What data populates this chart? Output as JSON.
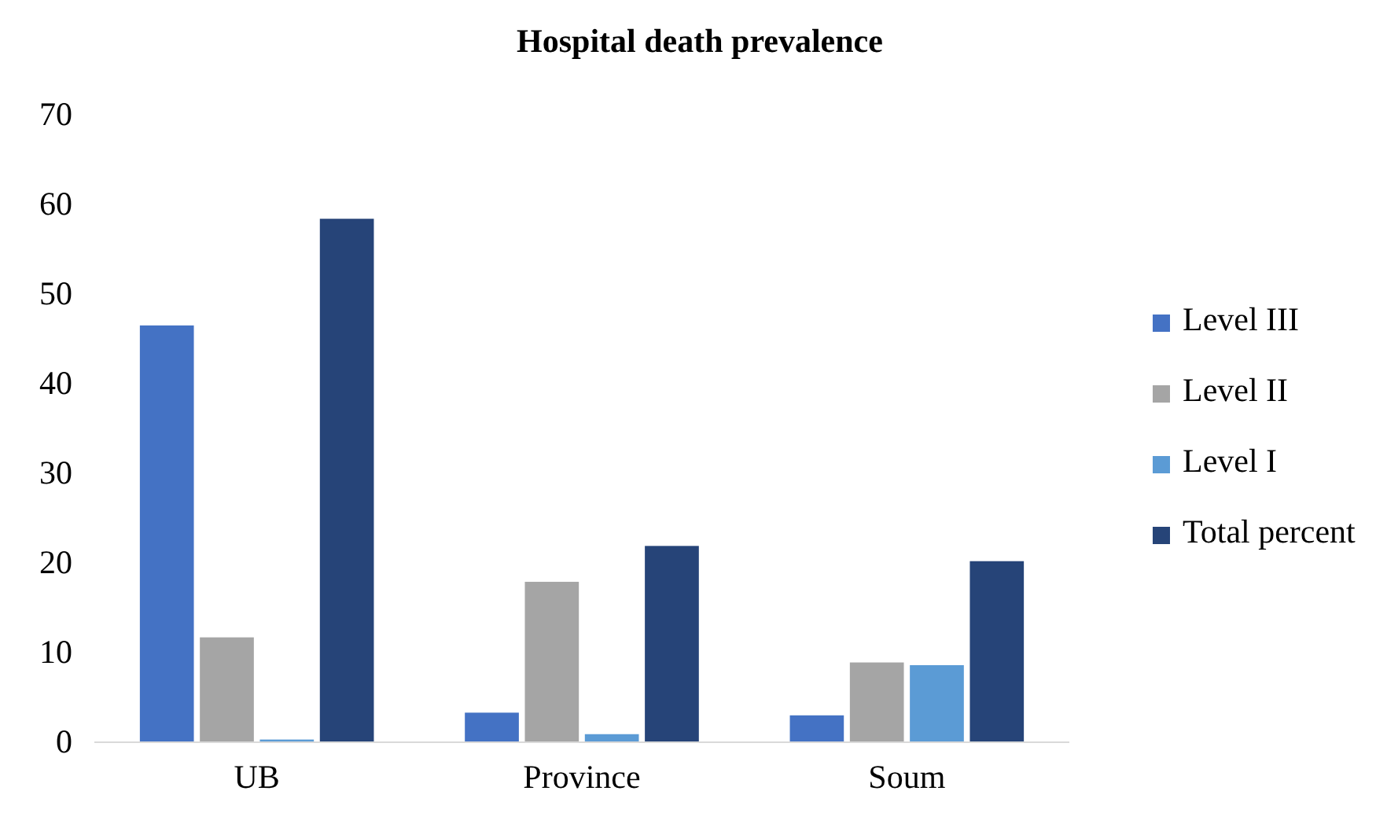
{
  "chart_data": {
    "type": "bar",
    "title": "Hospital death prevalence",
    "categories": [
      "UB",
      "Province",
      "Soum"
    ],
    "series": [
      {
        "name": "Level III",
        "color": "#4472c4",
        "values": [
          46.5,
          3.3,
          3.0
        ]
      },
      {
        "name": "Level II",
        "color": "#a5a5a5",
        "values": [
          11.7,
          17.9,
          8.9
        ]
      },
      {
        "name": "Level I",
        "color": "#5b9bd5",
        "values": [
          0.3,
          0.9,
          8.6
        ]
      },
      {
        "name": "Total percent",
        "color": "#264478",
        "values": [
          58.4,
          21.9,
          20.2
        ]
      }
    ],
    "ylim": [
      0,
      70
    ],
    "yticks": [
      0,
      10,
      20,
      30,
      40,
      50,
      60,
      70
    ],
    "grid": false,
    "legend": "right"
  }
}
